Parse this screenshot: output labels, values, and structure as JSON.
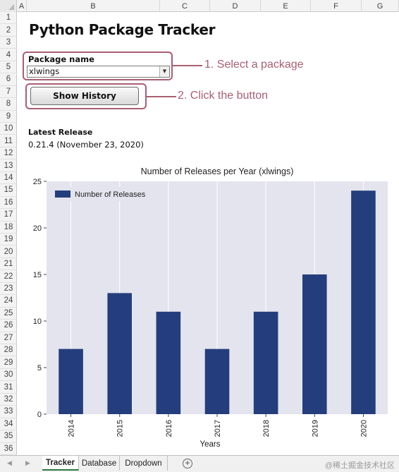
{
  "columns": [
    "A",
    "B",
    "C",
    "D",
    "E",
    "F",
    "G"
  ],
  "rows": [
    "1",
    "2",
    "3",
    "4",
    "5",
    "6",
    "7",
    "8",
    "9",
    "10",
    "11",
    "12",
    "13",
    "14",
    "15",
    "16",
    "17",
    "18",
    "19",
    "20",
    "21",
    "22",
    "23",
    "24",
    "25",
    "26",
    "27",
    "28",
    "29",
    "30",
    "31",
    "32",
    "33",
    "34",
    "35",
    "36"
  ],
  "sheet": {
    "title": "Python Package Tracker",
    "package_label": "Package name",
    "package_value": "xlwings",
    "button_label": "Show History",
    "latest_label": "Latest Release",
    "latest_value": "0.21.4 (November 23, 2020)"
  },
  "callouts": {
    "step1": "1. Select a package",
    "step2": "2. Click the button"
  },
  "chart_data": {
    "type": "bar",
    "title": "Number of Releases per Year (xlwings)",
    "xlabel": "Years",
    "ylabel": "",
    "categories": [
      "2014",
      "2015",
      "2016",
      "2017",
      "2018",
      "2019",
      "2020"
    ],
    "series": [
      {
        "name": "Number of Releases",
        "values": [
          7,
          13,
          11,
          7,
          11,
          15,
          24
        ]
      }
    ],
    "ylim": [
      0,
      25
    ],
    "yticks": [
      "0",
      "5",
      "10",
      "15",
      "20",
      "25"
    ],
    "grid": true,
    "legend": "top-left",
    "bar_color": "#243d7c",
    "plot_bg": "#e3e4ee"
  },
  "tabs": [
    "Tracker",
    "Database",
    "Dropdown"
  ],
  "active_tab": "Tracker",
  "watermark": "@稀土掘金技术社区"
}
